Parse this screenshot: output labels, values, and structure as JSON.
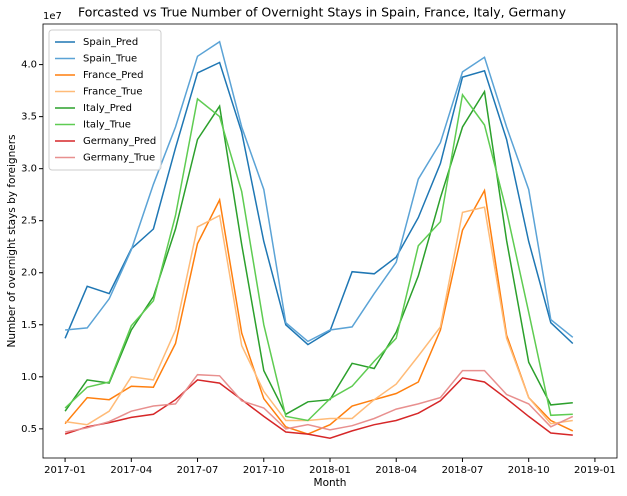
{
  "chart_data": {
    "type": "line",
    "title": "Forcasted vs True Number of Overnight Stays in Spain, France, Italy, Germany",
    "x_label": "Month",
    "y_label": "Number of overnight stays by foreigners",
    "y_offset_label": "1e7",
    "x": [
      "2017-01",
      "2017-02",
      "2017-03",
      "2017-04",
      "2017-05",
      "2017-06",
      "2017-07",
      "2017-08",
      "2017-09",
      "2017-10",
      "2017-11",
      "2017-12",
      "2018-01",
      "2018-02",
      "2018-03",
      "2018-04",
      "2018-05",
      "2018-06",
      "2018-07",
      "2018-08",
      "2018-09",
      "2018-10",
      "2018-11",
      "2018-12"
    ],
    "xlim": [
      "2016-12",
      "2019-02"
    ],
    "xticks": [
      "2017-01",
      "2017-04",
      "2017-07",
      "2017-10",
      "2018-01",
      "2018-04",
      "2018-07",
      "2018-10",
      "2019-01"
    ],
    "ylim": [
      0.22,
      4.39
    ],
    "yticks": [
      0.5,
      {
        "value": 1,
        "label": "1.0"
      },
      1.5,
      {
        "value": 2,
        "label": "2.0"
      },
      2.5,
      {
        "value": 3,
        "label": "3.0"
      },
      3.5,
      {
        "value": 4,
        "label": "4.0"
      }
    ],
    "legend": "upper left",
    "series": [
      {
        "name": "Spain_Pred",
        "color": "#1f77b4",
        "values": [
          1.37,
          1.87,
          1.8,
          2.23,
          2.42,
          3.2,
          3.92,
          4.02,
          3.35,
          2.3,
          1.5,
          1.31,
          1.44,
          2.01,
          1.99,
          2.15,
          2.53,
          3.05,
          3.88,
          3.94,
          3.28,
          2.3,
          1.52,
          1.32
        ]
      },
      {
        "name": "Spain_True",
        "color": "#5ba3d6",
        "values": [
          1.45,
          1.47,
          1.75,
          2.22,
          2.85,
          3.4,
          4.08,
          4.22,
          3.4,
          2.8,
          1.52,
          1.34,
          1.45,
          1.48,
          1.8,
          2.1,
          2.9,
          3.25,
          3.93,
          4.07,
          3.4,
          2.8,
          1.55,
          1.38
        ]
      },
      {
        "name": "France_Pred",
        "color": "#ff7f0e",
        "values": [
          0.55,
          0.8,
          0.78,
          0.91,
          0.9,
          1.32,
          2.28,
          2.7,
          1.42,
          0.79,
          0.52,
          0.45,
          0.54,
          0.72,
          0.78,
          0.84,
          0.95,
          1.45,
          2.41,
          2.79,
          1.4,
          0.8,
          0.58,
          0.48
        ]
      },
      {
        "name": "France_True",
        "color": "#ffbb78",
        "values": [
          0.57,
          0.54,
          0.67,
          1.0,
          0.97,
          1.45,
          2.44,
          2.55,
          1.3,
          0.86,
          0.58,
          0.58,
          0.6,
          0.6,
          0.78,
          0.93,
          1.2,
          1.48,
          2.58,
          2.63,
          1.37,
          0.8,
          0.55,
          0.58
        ]
      },
      {
        "name": "Italy_Pred",
        "color": "#2ca02c",
        "values": [
          0.67,
          0.97,
          0.94,
          1.45,
          1.77,
          2.42,
          3.28,
          3.6,
          2.27,
          1.06,
          0.64,
          0.76,
          0.78,
          1.13,
          1.08,
          1.43,
          1.97,
          2.72,
          3.4,
          3.74,
          2.31,
          1.14,
          0.73,
          0.75
        ]
      },
      {
        "name": "Italy_True",
        "color": "#5fcc52",
        "values": [
          0.7,
          0.9,
          0.95,
          1.49,
          1.73,
          2.55,
          3.67,
          3.5,
          2.78,
          1.5,
          0.62,
          0.58,
          0.79,
          0.91,
          1.15,
          1.37,
          2.26,
          2.49,
          3.71,
          3.42,
          2.59,
          1.62,
          0.63,
          0.64
        ]
      },
      {
        "name": "Germany_Pred",
        "color": "#d62728",
        "values": [
          0.45,
          0.52,
          0.56,
          0.61,
          0.64,
          0.78,
          0.97,
          0.94,
          0.78,
          0.62,
          0.47,
          0.45,
          0.41,
          0.48,
          0.54,
          0.58,
          0.65,
          0.77,
          0.99,
          0.95,
          0.79,
          0.62,
          0.46,
          0.44
        ]
      },
      {
        "name": "Germany_True",
        "color": "#e8908f",
        "values": [
          0.47,
          0.51,
          0.57,
          0.67,
          0.72,
          0.74,
          1.02,
          1.01,
          0.77,
          0.7,
          0.5,
          0.54,
          0.49,
          0.53,
          0.6,
          0.69,
          0.74,
          0.8,
          1.06,
          1.06,
          0.83,
          0.74,
          0.52,
          0.62
        ]
      }
    ]
  }
}
